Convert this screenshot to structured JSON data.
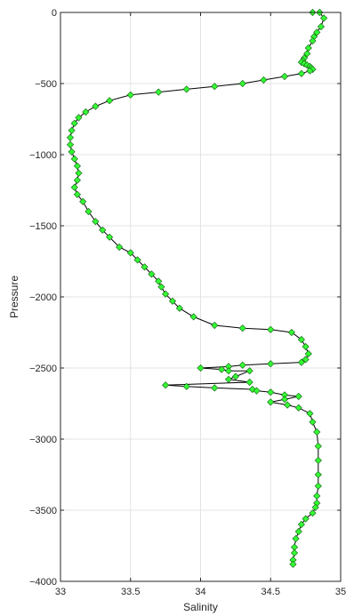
{
  "chart_data": {
    "type": "line",
    "xlabel": "Salinity",
    "ylabel": "Pressure",
    "xlim": [
      33,
      35
    ],
    "ylim": [
      -4000,
      0
    ],
    "x_ticks": [
      33,
      33.5,
      34,
      34.5,
      35
    ],
    "x_tick_labels": [
      "33",
      "33.5",
      "34",
      "34.5",
      "35"
    ],
    "y_ticks": [
      0,
      -500,
      -1000,
      -1500,
      -2000,
      -2500,
      -3000,
      -3500,
      -4000
    ],
    "y_tick_labels": [
      "0",
      "−500",
      "−1000",
      "−1500",
      "−2000",
      "−2500",
      "−3000",
      "−3500",
      "−4000"
    ],
    "grid": true,
    "marker": "diamond",
    "line_color": "#000000",
    "marker_fill": "#33ff33",
    "marker_edge": "#1a6a1a",
    "series": [
      {
        "x": [
          34.8,
          34.85,
          34.88,
          34.86,
          34.83,
          34.81,
          34.8,
          34.77,
          34.76,
          34.74,
          34.73,
          34.72,
          34.74,
          34.76,
          34.78,
          34.79,
          34.8,
          34.78,
          34.72,
          34.6,
          34.45,
          34.3,
          34.1,
          33.9,
          33.7,
          33.5,
          33.35,
          33.25,
          33.18,
          33.13,
          33.1,
          33.08,
          33.07,
          33.07,
          33.08,
          33.1,
          33.12,
          33.13,
          33.12,
          33.1,
          33.12,
          33.16,
          33.2,
          33.25,
          33.3,
          33.35,
          33.42,
          33.5,
          33.55,
          33.6,
          33.65,
          33.7,
          33.72,
          33.75,
          33.8,
          33.85,
          33.95,
          34.1,
          34.3,
          34.5,
          34.65,
          34.72,
          34.75,
          34.77,
          34.75,
          34.72,
          34.5,
          34.3,
          34.2,
          34.0,
          34.15,
          34.2,
          34.35,
          34.25,
          34.2,
          34.35,
          33.75,
          33.9,
          34.1,
          34.37,
          34.4,
          34.5,
          34.6,
          34.7,
          34.6,
          34.5,
          34.62,
          34.7,
          34.78,
          34.8,
          34.83,
          34.84,
          34.84,
          34.84,
          34.84,
          34.83,
          34.83,
          34.82,
          34.8,
          34.75,
          34.72,
          34.7,
          34.68,
          34.67,
          34.67,
          34.66,
          34.66
        ],
        "y": [
          0,
          0,
          -40,
          -100,
          -140,
          -170,
          -200,
          -250,
          -290,
          -320,
          -340,
          -350,
          -360,
          -370,
          -380,
          -390,
          -400,
          -410,
          -430,
          -450,
          -475,
          -500,
          -520,
          -540,
          -560,
          -580,
          -620,
          -660,
          -700,
          -740,
          -780,
          -830,
          -880,
          -930,
          -980,
          -1030,
          -1080,
          -1130,
          -1180,
          -1230,
          -1280,
          -1330,
          -1400,
          -1470,
          -1530,
          -1580,
          -1650,
          -1690,
          -1740,
          -1790,
          -1840,
          -1890,
          -1930,
          -1980,
          -2030,
          -2080,
          -2140,
          -2200,
          -2220,
          -2230,
          -2250,
          -2300,
          -2350,
          -2400,
          -2440,
          -2460,
          -2470,
          -2480,
          -2490,
          -2500,
          -2510,
          -2520,
          -2520,
          -2560,
          -2580,
          -2600,
          -2620,
          -2630,
          -2640,
          -2650,
          -2660,
          -2670,
          -2690,
          -2700,
          -2720,
          -2740,
          -2760,
          -2780,
          -2820,
          -2880,
          -2950,
          -3050,
          -3150,
          -3250,
          -3330,
          -3400,
          -3450,
          -3480,
          -3520,
          -3560,
          -3600,
          -3650,
          -3700,
          -3760,
          -3800,
          -3850,
          -3880
        ]
      }
    ]
  }
}
